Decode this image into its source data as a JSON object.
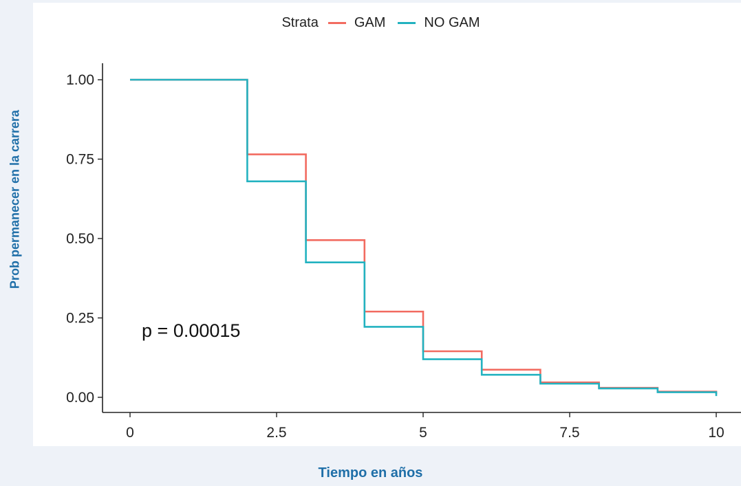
{
  "chart_data": {
    "type": "line",
    "step": true,
    "legend": {
      "title": "Strata",
      "position": "top",
      "entries": [
        {
          "name": "GAM",
          "color": "#f26b60"
        },
        {
          "name": "NO GAM",
          "color": "#22b2c0"
        }
      ]
    },
    "xlabel": "Tiempo en años",
    "ylabel": "Prob permanecer en  la carrera",
    "xlim": [
      0,
      10
    ],
    "ylim": [
      0,
      1
    ],
    "x_ticks": [
      {
        "value": 0,
        "label": "0"
      },
      {
        "value": 2.5,
        "label": "2.5"
      },
      {
        "value": 5,
        "label": "5"
      },
      {
        "value": 7.5,
        "label": "7.5"
      },
      {
        "value": 10,
        "label": "10"
      }
    ],
    "y_ticks": [
      {
        "value": 0,
        "label": "0.00"
      },
      {
        "value": 0.25,
        "label": "0.25"
      },
      {
        "value": 0.5,
        "label": "0.50"
      },
      {
        "value": 0.75,
        "label": "0.75"
      },
      {
        "value": 1,
        "label": "1.00"
      }
    ],
    "grid": false,
    "annotations": [
      {
        "text": "p = 0.00015",
        "x": 0.2,
        "y": 0.19
      }
    ],
    "x": [
      0,
      2,
      3,
      4,
      5,
      6,
      7,
      8,
      9,
      10
    ],
    "series": [
      {
        "name": "GAM",
        "values": [
          1.0,
          0.765,
          0.495,
          0.27,
          0.145,
          0.087,
          0.047,
          0.03,
          0.018,
          0.01
        ]
      },
      {
        "name": "NO GAM",
        "values": [
          1.0,
          0.68,
          0.425,
          0.222,
          0.12,
          0.071,
          0.043,
          0.028,
          0.016,
          0.004
        ]
      }
    ]
  }
}
